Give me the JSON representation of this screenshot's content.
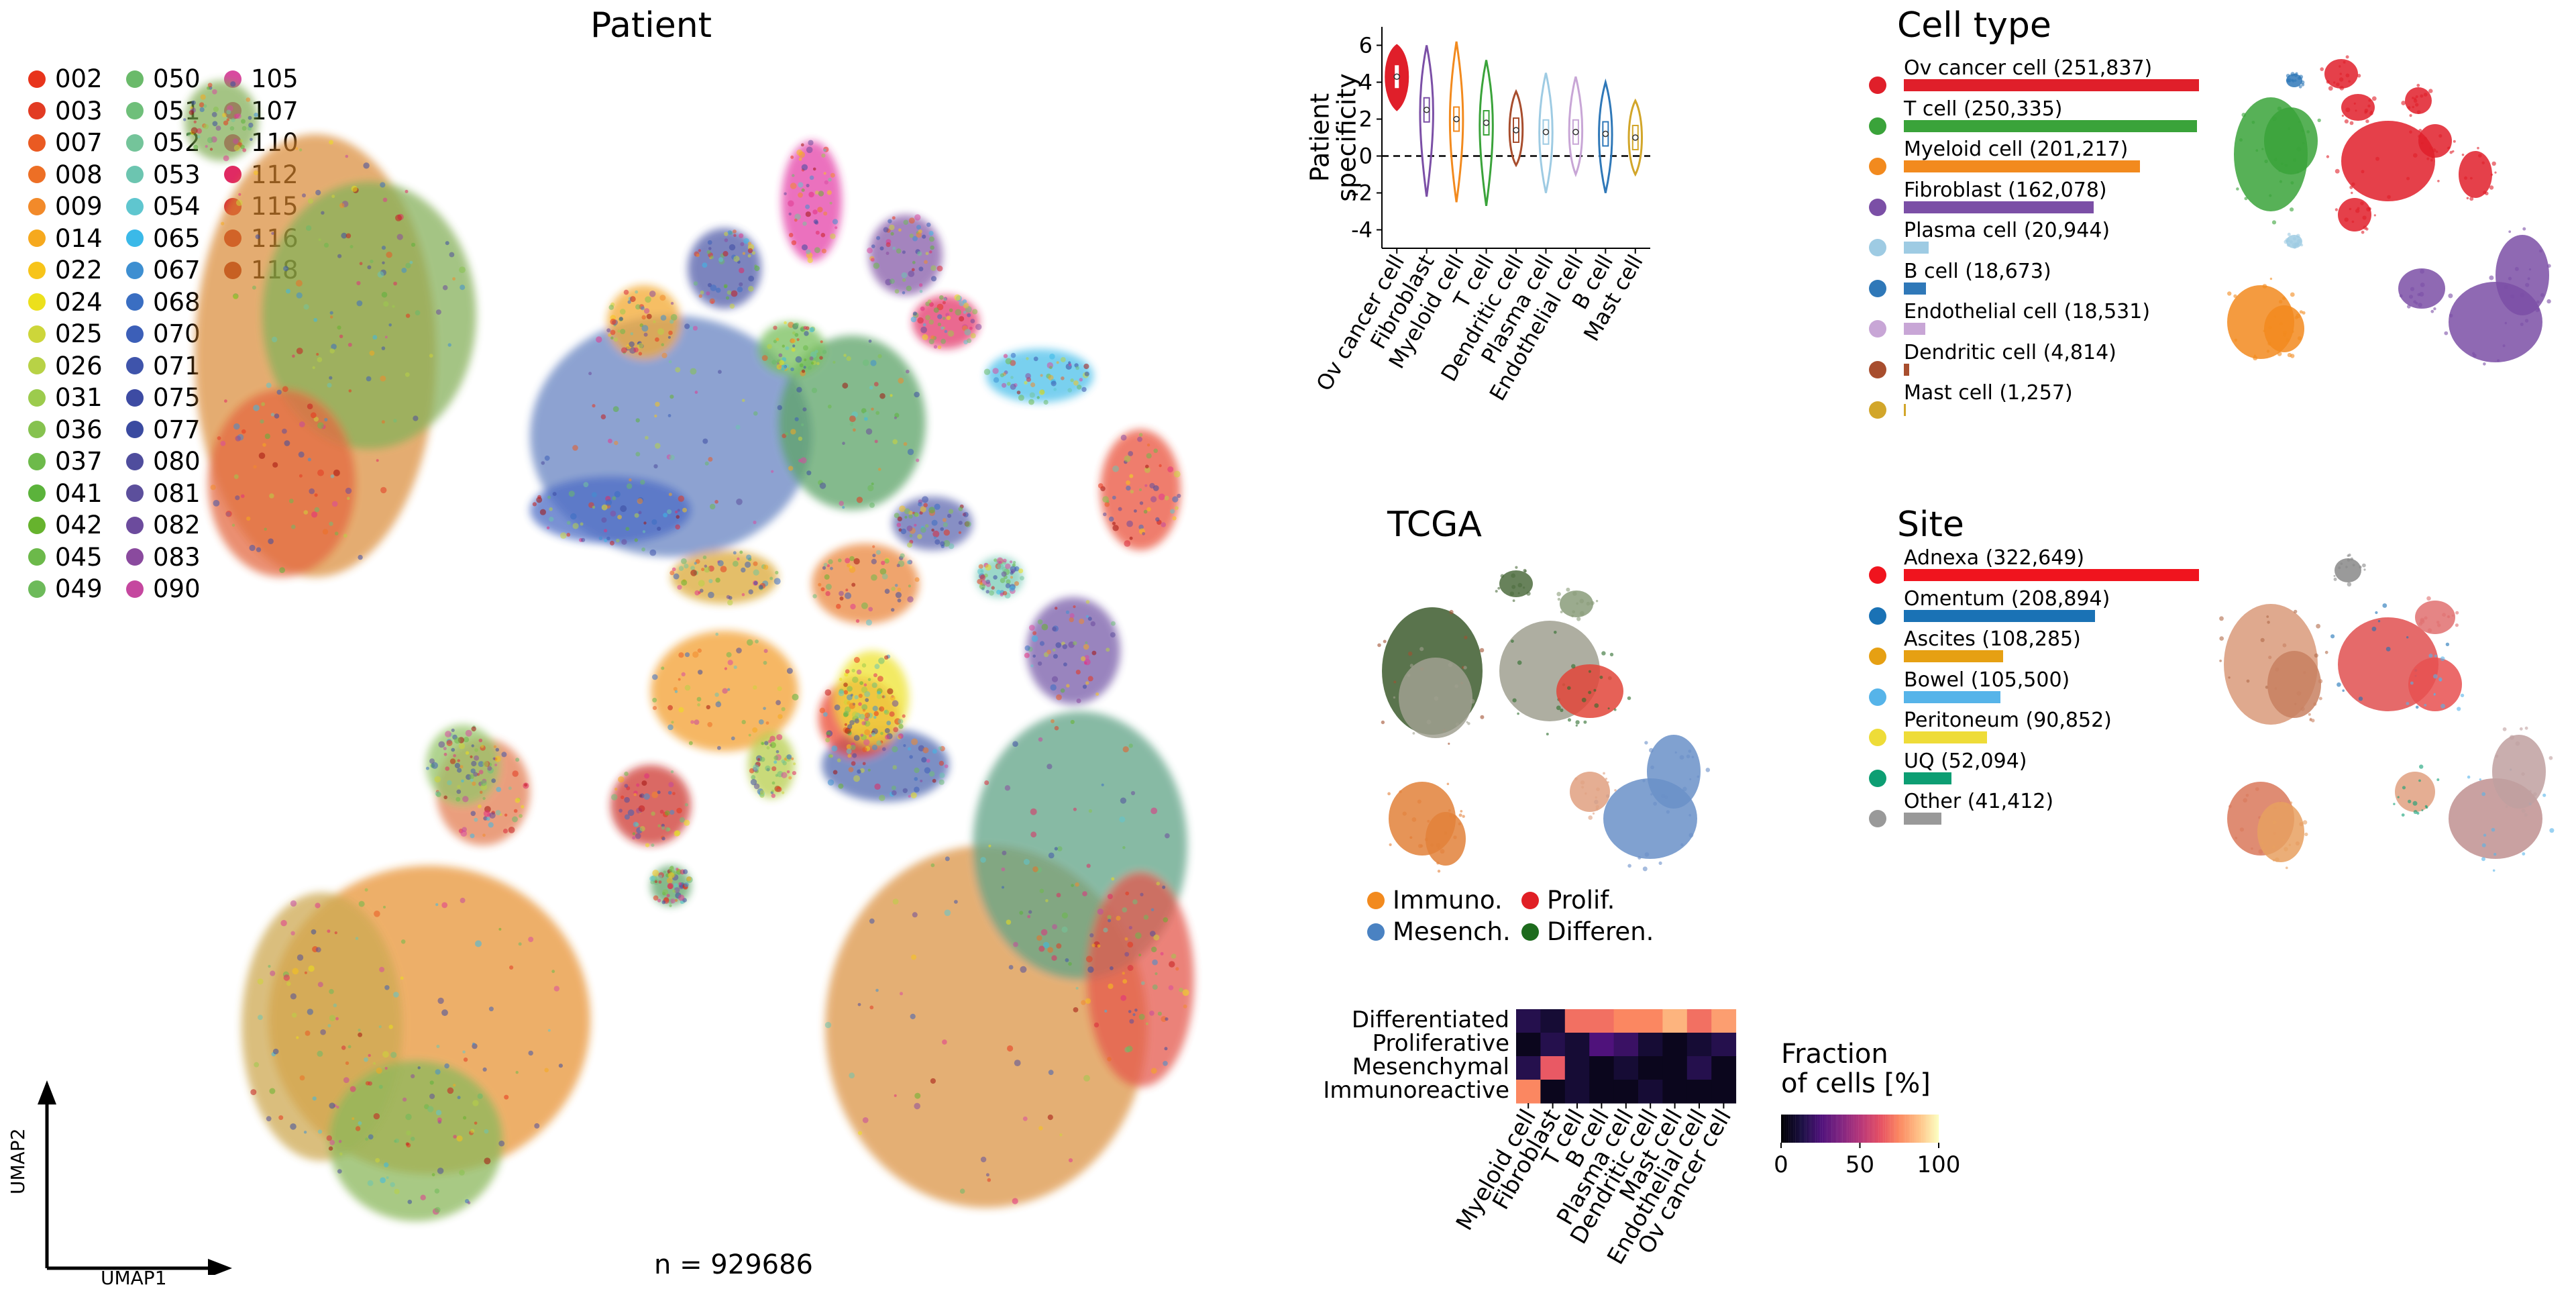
{
  "patient_panel": {
    "title": "Patient",
    "n_label": "n = 929686",
    "axis_x": "UMAP1",
    "axis_y": "UMAP2",
    "legend": [
      {
        "id": "002",
        "color": "#e8341c"
      },
      {
        "id": "003",
        "color": "#e23b23"
      },
      {
        "id": "007",
        "color": "#ea5a22"
      },
      {
        "id": "008",
        "color": "#ed6f25"
      },
      {
        "id": "009",
        "color": "#f28a2a"
      },
      {
        "id": "014",
        "color": "#f6a91e"
      },
      {
        "id": "022",
        "color": "#f7c41a"
      },
      {
        "id": "024",
        "color": "#ece01c"
      },
      {
        "id": "025",
        "color": "#cdd63a"
      },
      {
        "id": "026",
        "color": "#b8d246"
      },
      {
        "id": "031",
        "color": "#9ccb4d"
      },
      {
        "id": "036",
        "color": "#86c24f"
      },
      {
        "id": "037",
        "color": "#6dba4a"
      },
      {
        "id": "041",
        "color": "#5bb33b"
      },
      {
        "id": "042",
        "color": "#66b32d"
      },
      {
        "id": "045",
        "color": "#6cb94a"
      },
      {
        "id": "049",
        "color": "#6dba5a"
      },
      {
        "id": "050",
        "color": "#6aba6a"
      },
      {
        "id": "051",
        "color": "#6fbf7a"
      },
      {
        "id": "052",
        "color": "#74c49a"
      },
      {
        "id": "053",
        "color": "#6cc5b0"
      },
      {
        "id": "054",
        "color": "#5fc6cf"
      },
      {
        "id": "065",
        "color": "#3bb9e8"
      },
      {
        "id": "067",
        "color": "#3e8fd1"
      },
      {
        "id": "068",
        "color": "#3a6ec2"
      },
      {
        "id": "070",
        "color": "#3c5fb8"
      },
      {
        "id": "071",
        "color": "#3f54ab"
      },
      {
        "id": "075",
        "color": "#3d4ba3"
      },
      {
        "id": "077",
        "color": "#3a4aa0"
      },
      {
        "id": "080",
        "color": "#4f4d9d"
      },
      {
        "id": "081",
        "color": "#5c4f9c"
      },
      {
        "id": "082",
        "color": "#6c4b9d"
      },
      {
        "id": "083",
        "color": "#8a4a9e"
      },
      {
        "id": "090",
        "color": "#c5479f"
      },
      {
        "id": "105",
        "color": "#d94aa0"
      },
      {
        "id": "107",
        "color": "#e0388f"
      },
      {
        "id": "110",
        "color": "#e22d7f"
      },
      {
        "id": "112",
        "color": "#e02a63"
      },
      {
        "id": "115",
        "color": "#d82a3a"
      },
      {
        "id": "116",
        "color": "#c41d1d"
      },
      {
        "id": "118",
        "color": "#a3120f"
      }
    ]
  },
  "tcga_panel": {
    "title": "TCGA",
    "legend": [
      {
        "label": "Immuno.",
        "color": "#f28a1e"
      },
      {
        "label": "Prolif.",
        "color": "#e01f25"
      },
      {
        "label": "Mesench.",
        "color": "#4a82c2"
      },
      {
        "label": "Differen.",
        "color": "#1d6b1d"
      }
    ]
  },
  "celltype_panel": {
    "title": "Cell type"
  },
  "site_panel": {
    "title": "Site"
  },
  "heatmap_colorbar": {
    "title_line1": "Fraction",
    "title_line2": "of cells [%]",
    "ticks": [
      "0",
      "50",
      "100"
    ]
  },
  "chart_data": [
    {
      "type": "violin",
      "ylabel": "Patient specificity",
      "categories": [
        "Ov cancer cell",
        "Fibroblast",
        "Myeloid cell",
        "T cell",
        "Dendritic cell",
        "Plasma cell",
        "Endothelial cell",
        "B cell",
        "Mast cell"
      ],
      "colors": [
        "#e01f2a",
        "#7b4fa6",
        "#f28a1e",
        "#3aa33a",
        "#a84e2e",
        "#9ecbe3",
        "#c8a6d6",
        "#2f78b8",
        "#d2a62a"
      ],
      "medians": [
        4.3,
        2.5,
        2.0,
        1.8,
        1.4,
        1.3,
        1.3,
        1.2,
        1.0
      ],
      "ymin": [
        2.5,
        -2.2,
        -2.5,
        -2.7,
        -0.5,
        -2.0,
        -1.0,
        -2.0,
        -1.0
      ],
      "ymax": [
        6.0,
        6.0,
        6.2,
        5.2,
        3.5,
        4.5,
        4.3,
        4.0,
        3.0
      ],
      "yticks": [
        "6",
        "4",
        "2",
        "0",
        "-2",
        "-4"
      ],
      "ylim": [
        -5,
        7
      ]
    },
    {
      "type": "bar",
      "title": "Cell type",
      "categories": [
        "Ov cancer cell",
        "T cell",
        "Myeloid cell",
        "Fibroblast",
        "Plasma cell",
        "B cell",
        "Endothelial cell",
        "Dendritic cell",
        "Mast cell"
      ],
      "labels": [
        "Ov cancer cell (251,837)",
        "T cell (250,335)",
        "Myeloid cell (201,217)",
        "Fibroblast (162,078)",
        "Plasma cell (20,944)",
        "B cell (18,673)",
        "Endothelial cell (18,531)",
        "Dendritic cell (4,814)",
        "Mast cell (1,257)"
      ],
      "values": [
        251837,
        250335,
        201217,
        162078,
        20944,
        18673,
        18531,
        4814,
        1257
      ],
      "colors": [
        "#e01f2a",
        "#3aa33a",
        "#f28a1e",
        "#7b4fa6",
        "#9ecbe3",
        "#2f78b8",
        "#c8a6d6",
        "#a84e2e",
        "#d2a62a"
      ]
    },
    {
      "type": "bar",
      "title": "Site",
      "categories": [
        "Adnexa",
        "Omentum",
        "Ascites",
        "Bowel",
        "Peritoneum",
        "UQ",
        "Other"
      ],
      "labels": [
        "Adnexa (322,649)",
        "Omentum (208,894)",
        "Ascites (108,285)",
        "Bowel (105,500)",
        "Peritoneum (90,852)",
        "UQ (52,094)",
        "Other (41,412)"
      ],
      "values": [
        322649,
        208894,
        108285,
        105500,
        90852,
        52094,
        41412
      ],
      "colors": [
        "#f0141e",
        "#1a72b5",
        "#e6a013",
        "#56b4e9",
        "#eedc38",
        "#0d9e73",
        "#999999"
      ]
    },
    {
      "type": "heatmap",
      "rows": [
        "Differentiated",
        "Proliferative",
        "Mesenchymal",
        "Immunoreactive"
      ],
      "columns": [
        "Myeloid cell",
        "Fibroblast",
        "T cell",
        "B cell",
        "Plasma cell",
        "Dendritic cell",
        "Mast cell",
        "Endothelial cell",
        "Ov cancer cell"
      ],
      "values": [
        [
          15,
          10,
          70,
          70,
          75,
          75,
          85,
          70,
          80
        ],
        [
          5,
          15,
          10,
          25,
          20,
          10,
          5,
          10,
          15
        ],
        [
          15,
          65,
          10,
          5,
          10,
          5,
          5,
          15,
          5
        ],
        [
          75,
          5,
          10,
          5,
          5,
          10,
          5,
          5,
          5
        ]
      ],
      "range": [
        0,
        100
      ]
    }
  ]
}
